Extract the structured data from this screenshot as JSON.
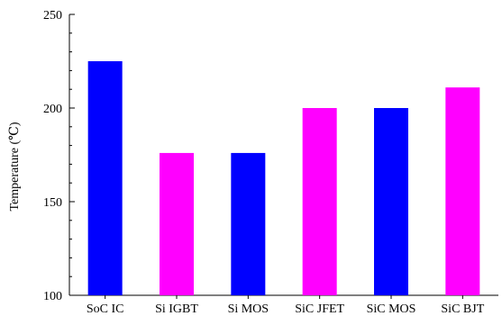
{
  "chart_data": {
    "type": "bar",
    "categories": [
      "SoC IC",
      "Si IGBT",
      "Si MOS",
      "SiC JFET",
      "SiC MOS",
      "SiC BJT"
    ],
    "values": [
      225,
      176,
      176,
      200,
      200,
      211
    ],
    "bar_colors": [
      "#0000ff",
      "#ff00ff",
      "#0000ff",
      "#ff00ff",
      "#0000ff",
      "#ff00ff"
    ],
    "ylabel": "Temperature (℃)",
    "xlabel": "",
    "ylim": [
      100,
      250
    ],
    "yticks": [
      "100",
      "150",
      "200",
      "250"
    ],
    "grid": false,
    "legend": "none"
  }
}
